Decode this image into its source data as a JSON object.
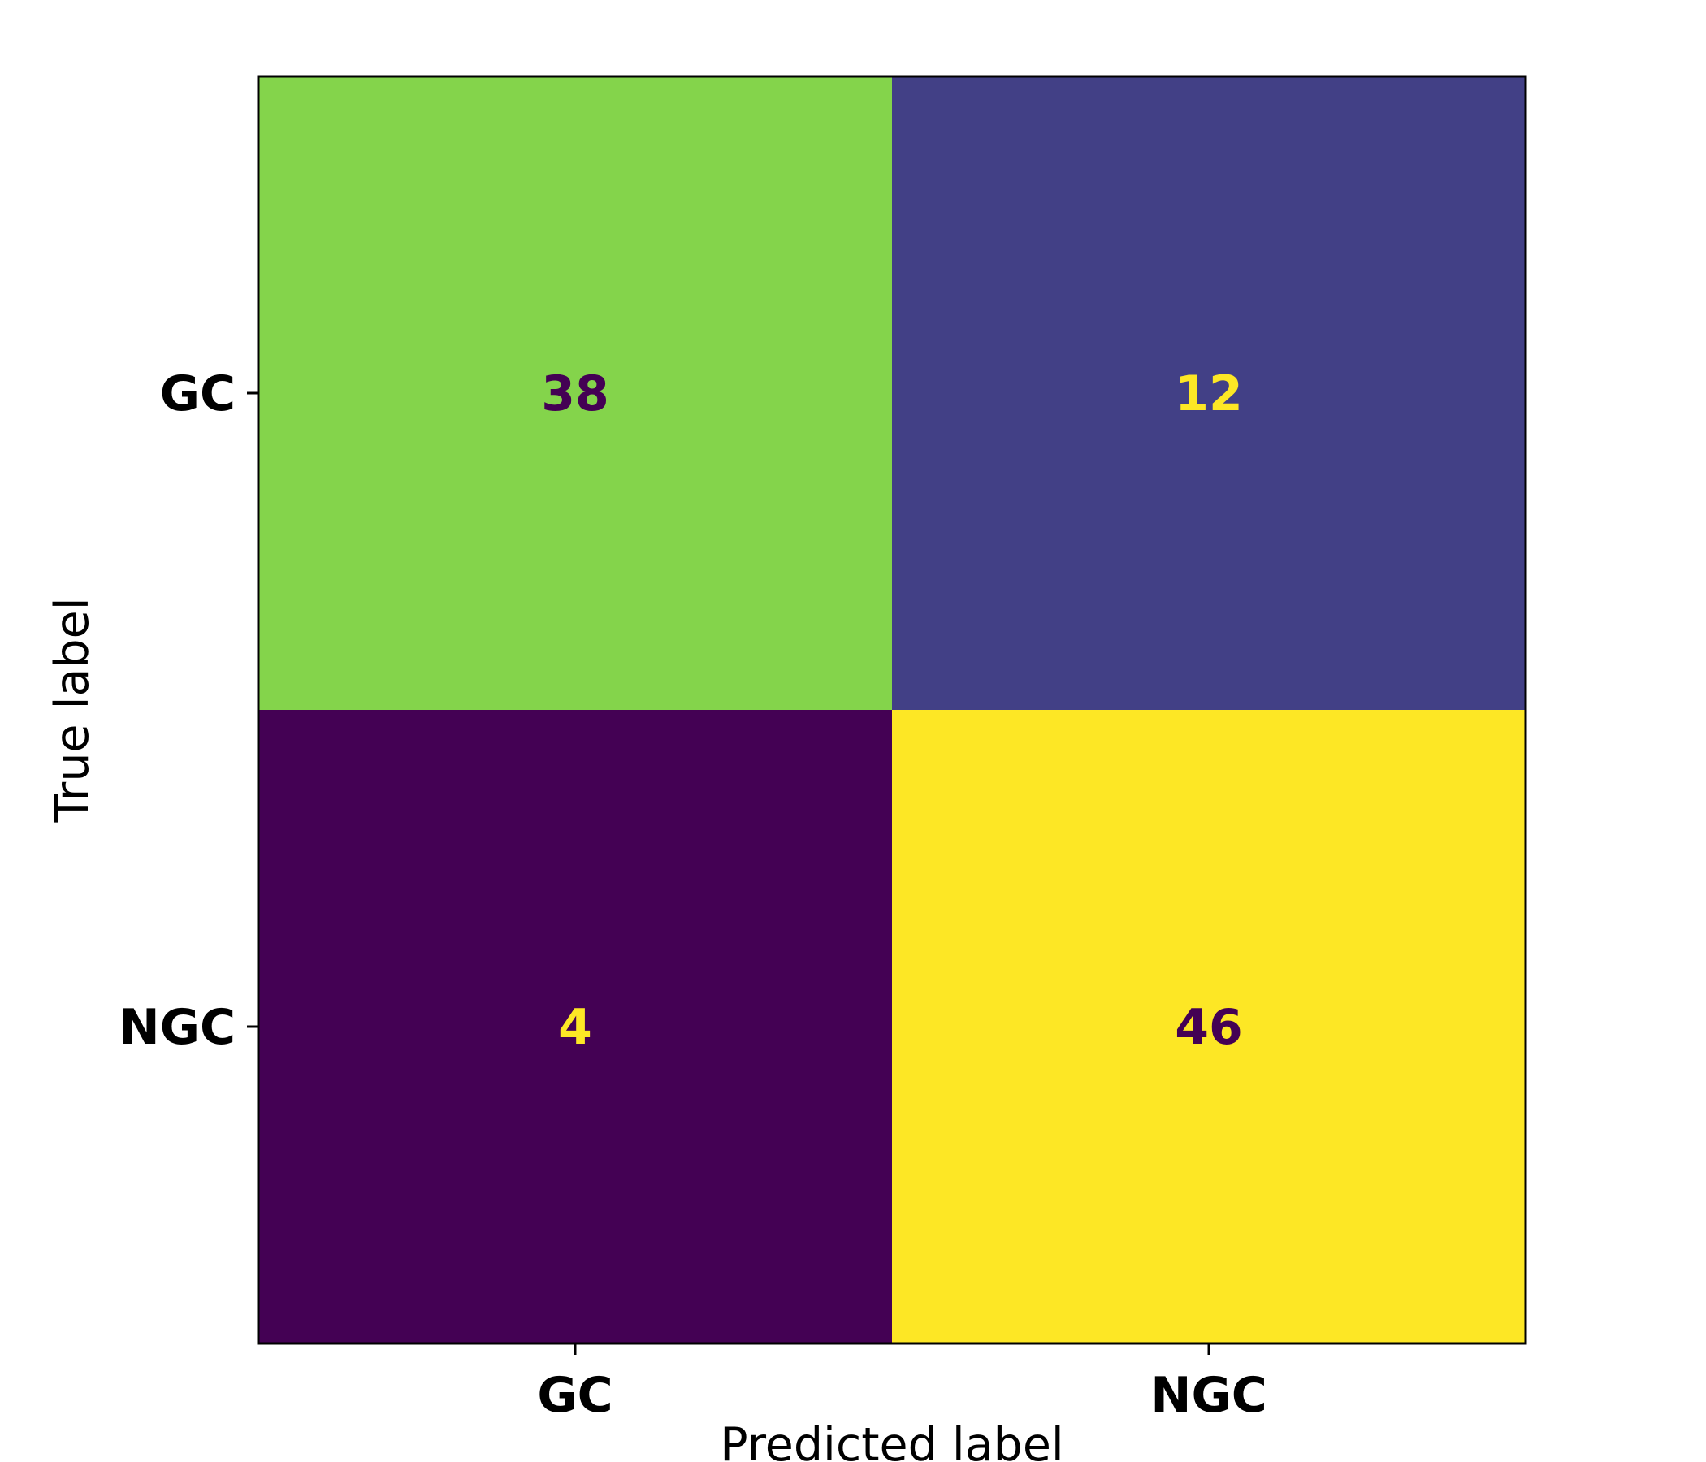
{
  "chart_data": {
    "type": "heatmap",
    "title": "",
    "xlabel": "Predicted label",
    "ylabel": "True label",
    "x_categories": [
      "GC",
      "NGC"
    ],
    "y_categories": [
      "GC",
      "NGC"
    ],
    "matrix": [
      [
        38,
        12
      ],
      [
        4,
        46
      ]
    ],
    "colormap": "viridis",
    "cell_colors": [
      [
        "#84d44b",
        "#424086"
      ],
      [
        "#440154",
        "#fde725"
      ]
    ],
    "text_colors": [
      [
        "#440154",
        "#fde725"
      ],
      [
        "#fde725",
        "#440154"
      ]
    ],
    "colorbar": false,
    "grid": false
  }
}
